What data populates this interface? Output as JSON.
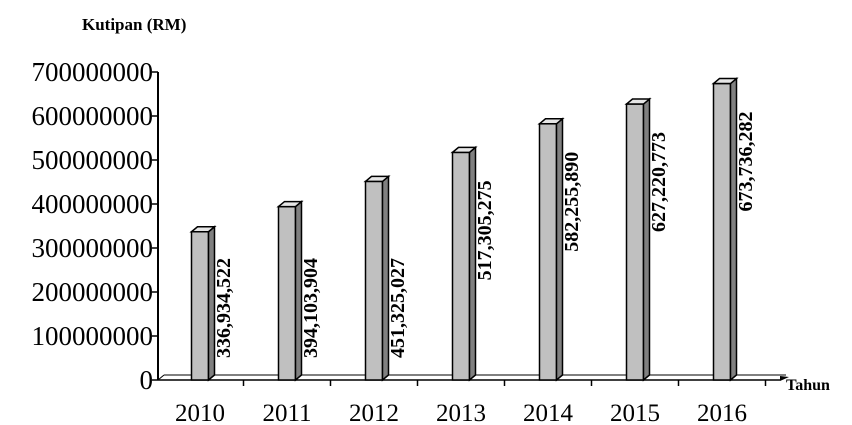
{
  "chart_data": {
    "type": "bar",
    "ylabel": "Kutipan (RM)",
    "xlabel": "Tahun",
    "categories": [
      "2010",
      "2011",
      "2012",
      "2013",
      "2014",
      "2015",
      "2016"
    ],
    "values": [
      336934522,
      394103904,
      451325027,
      517305275,
      582255890,
      627220773,
      673736282
    ],
    "data_labels": [
      "336,934,522",
      "394,103,904",
      "451,325,027",
      "517,305,275",
      "582,255,890",
      "627,220,773",
      "673,736,282"
    ],
    "y_ticks": [
      "0",
      "100000000",
      "200000000",
      "300000000",
      "400000000",
      "500000000",
      "600000000",
      "700000000"
    ],
    "ylim": [
      0,
      700000000
    ],
    "grid": false,
    "legend": "none",
    "style": "3d-bar",
    "colors": {
      "bar_front": "#c0c0c0",
      "bar_side": "#808080",
      "bar_top": "#e6e6e6",
      "stroke": "#000000"
    }
  }
}
